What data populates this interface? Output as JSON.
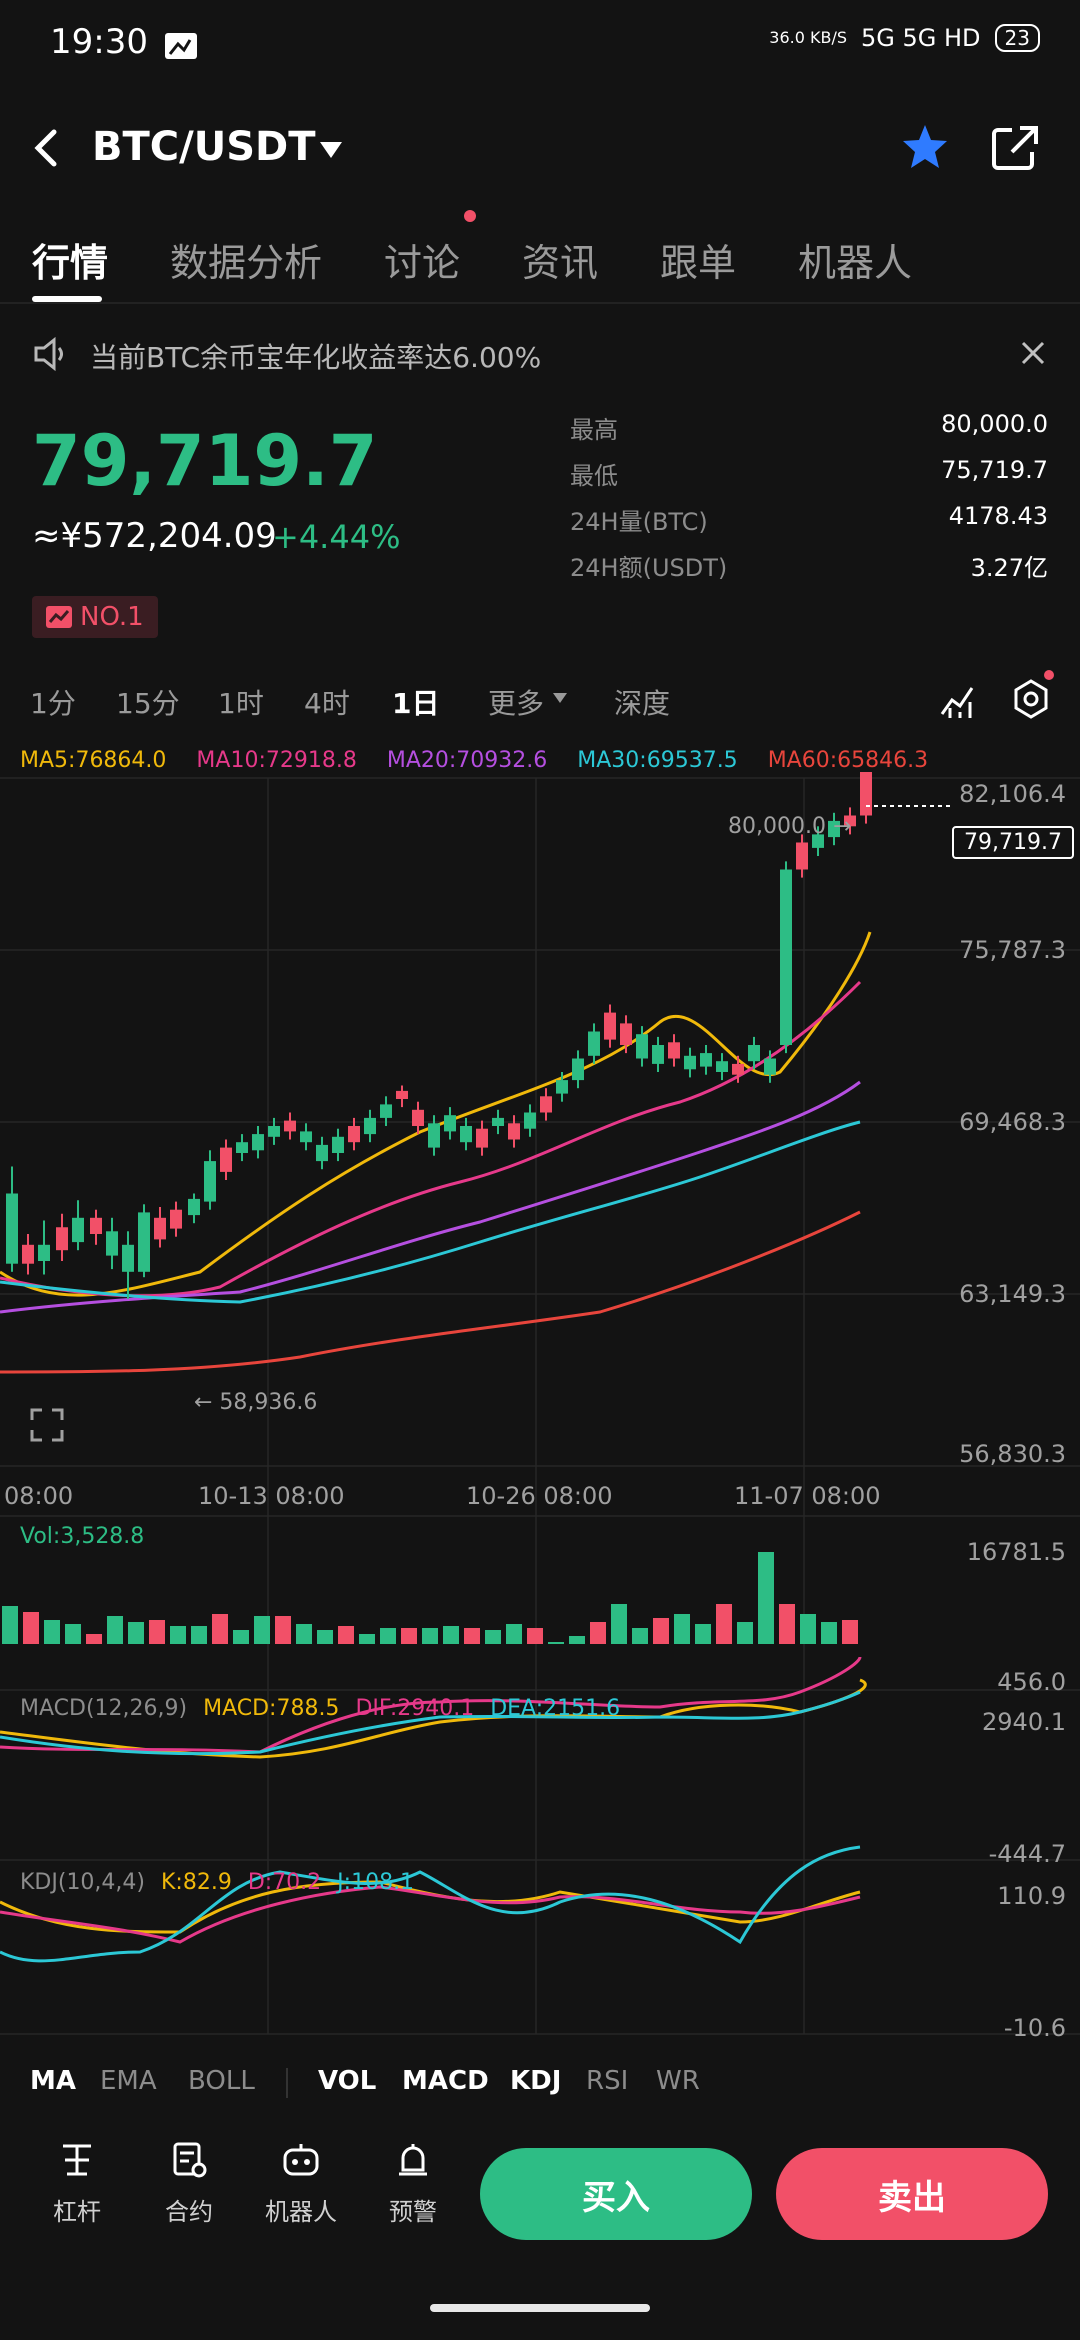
{
  "status": {
    "time": "19:30",
    "net_speed": "36.0 KB/S",
    "signal": "5G 5G HD",
    "battery": "23"
  },
  "header": {
    "pair": "BTC/USDT"
  },
  "tabs": [
    "行情",
    "数据分析",
    "讨论",
    "资讯",
    "跟单",
    "机器人"
  ],
  "notice": {
    "text": "当前BTC余币宝年化收益率达6.00%"
  },
  "ticker": {
    "price": "79,719.7",
    "cny": "≈¥572,204.09",
    "change": "+4.44%",
    "rank": "NO.1",
    "stats": [
      {
        "label": "最高",
        "value": "80,000.0"
      },
      {
        "label": "最低",
        "value": "75,719.7"
      },
      {
        "label": "24H量(BTC)",
        "value": "4178.43"
      },
      {
        "label": "24H额(USDT)",
        "value": "3.27亿"
      }
    ]
  },
  "timeframes": [
    "1分",
    "15分",
    "1时",
    "4时",
    "1日",
    "更多",
    "深度"
  ],
  "ma": [
    {
      "label": "MA5:76864.0",
      "color": "#f0b90b"
    },
    {
      "label": "MA10:72918.8",
      "color": "#e6398a"
    },
    {
      "label": "MA20:70932.6",
      "color": "#b54fe0"
    },
    {
      "label": "MA30:69537.5",
      "color": "#2cc8d6"
    },
    {
      "label": "MA60:65846.3",
      "color": "#e8453c"
    }
  ],
  "chart": {
    "y_ticks": [
      "82,106.4",
      "75,787.3",
      "69,468.3",
      "63,149.3",
      "56,830.3"
    ],
    "x_ticks": [
      "08:00",
      "10-13 08:00",
      "10-26 08:00",
      "11-07 08:00"
    ],
    "high_label": "80,000.0 →",
    "low_label": "← 58,936.6",
    "last_price": "79,719.7"
  },
  "volume": {
    "label": "Vol:3,528.8",
    "max": "16781.5",
    "min": "456.0"
  },
  "macd": {
    "name": "MACD(12,26,9)",
    "macd": "MACD:788.5",
    "dif": "DIF:2940.1",
    "dea": "DEA:2151.6",
    "max": "2940.1",
    "min": "-444.7"
  },
  "kdj": {
    "name": "KDJ(10,4,4)",
    "k": "K:82.9",
    "d": "D:70.2",
    "j": "J:108.1",
    "max": "110.9",
    "min": "-10.6"
  },
  "indicators": [
    "MA",
    "EMA",
    "BOLL",
    "VOL",
    "MACD",
    "KDJ",
    "RSI",
    "WR"
  ],
  "bottom": {
    "items": [
      "杠杆",
      "合约",
      "机器人",
      "预警"
    ],
    "buy": "买入",
    "sell": "卖出"
  },
  "colors": {
    "up": "#2dbd85",
    "down": "#f25068",
    "bg": "#131313"
  }
}
